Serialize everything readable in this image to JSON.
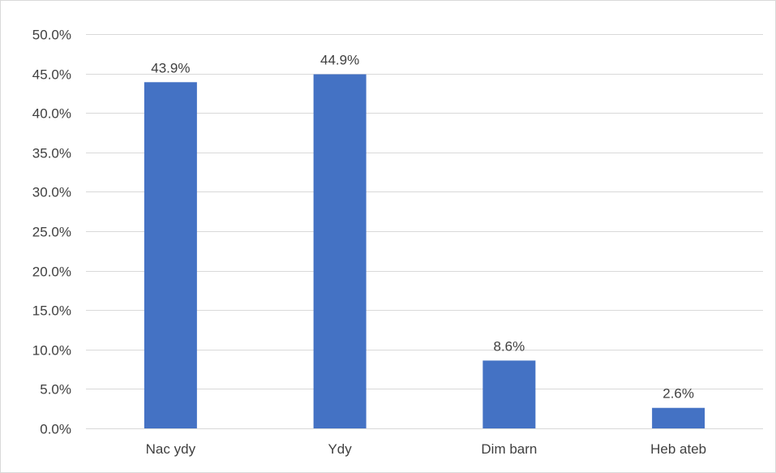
{
  "chart_data": {
    "type": "bar",
    "title": "",
    "xlabel": "",
    "ylabel": "",
    "categories": [
      "Nac ydy",
      "Ydy",
      "Dim barn",
      "Heb ateb"
    ],
    "values": [
      43.9,
      44.9,
      8.6,
      2.6
    ],
    "data_labels": [
      "43.9%",
      "44.9%",
      "8.6%",
      "2.6%"
    ],
    "ylim": [
      0,
      50
    ],
    "y_ticks": [
      0,
      5,
      10,
      15,
      20,
      25,
      30,
      35,
      40,
      45,
      50
    ],
    "y_tick_labels": [
      "0.0%",
      "5.0%",
      "10.0%",
      "15.0%",
      "20.0%",
      "25.0%",
      "30.0%",
      "35.0%",
      "40.0%",
      "45.0%",
      "50.0%"
    ],
    "grid": true,
    "legend": "none",
    "bar_color": "#4472C4"
  }
}
